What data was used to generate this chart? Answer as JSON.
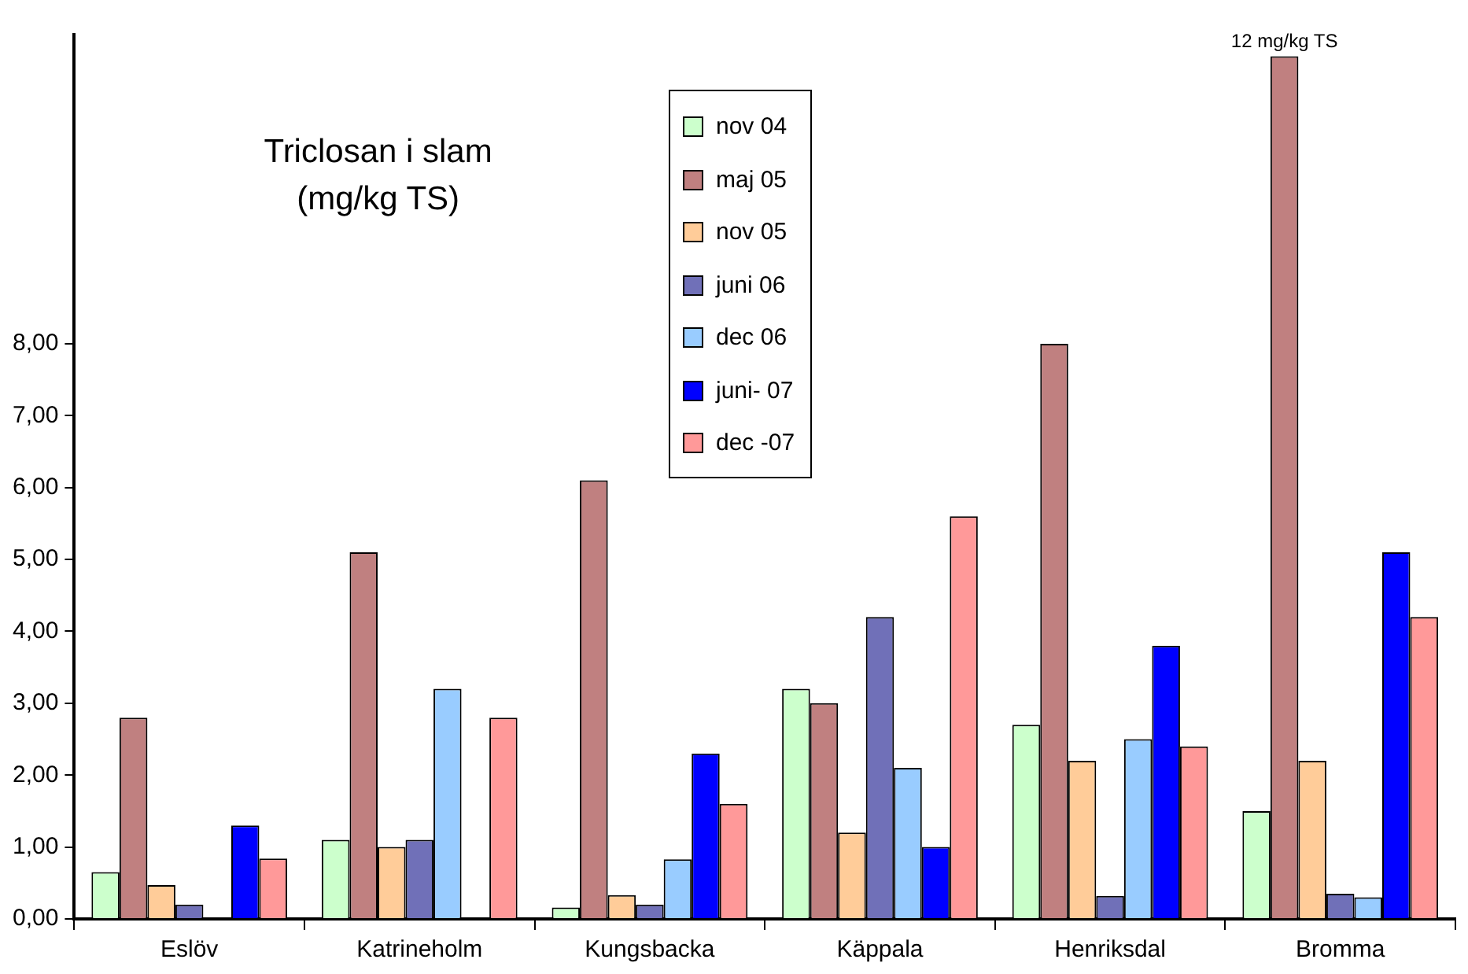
{
  "chart_data": {
    "type": "bar",
    "title": "Triclosan i slam",
    "subtitle": "(mg/kg TS)",
    "categories": [
      "Eslöv",
      "Katrineholm",
      "Kungsbacka",
      "Käppala",
      "Henriksdal",
      "Bromma"
    ],
    "series": [
      {
        "name": "nov 04",
        "color": "#ccffcc",
        "values": [
          0.65,
          1.1,
          0.16,
          3.2,
          2.7,
          1.5
        ]
      },
      {
        "name": "maj 05",
        "color": "#c08080",
        "values": [
          2.8,
          5.1,
          6.1,
          3.0,
          8.0,
          12
        ],
        "value_labels": [
          null,
          null,
          null,
          null,
          null,
          "12 mg/kg TS"
        ]
      },
      {
        "name": "nov 05",
        "color": "#ffcc99",
        "values": [
          0.47,
          1.0,
          0.33,
          1.2,
          2.2,
          2.2
        ]
      },
      {
        "name": "juni 06",
        "color": "#7070b8",
        "values": [
          0.2,
          1.1,
          0.2,
          4.2,
          0.32,
          0.35
        ]
      },
      {
        "name": "dec 06",
        "color": "#99ccff",
        "values": [
          null,
          3.2,
          0.83,
          2.1,
          2.5,
          0.3
        ]
      },
      {
        "name": "juni- 07",
        "color": "#0000ff",
        "values": [
          1.3,
          null,
          2.3,
          1.0,
          3.8,
          5.1
        ]
      },
      {
        "name": "dec -07",
        "color": "#ff9999",
        "values": [
          0.84,
          2.8,
          1.6,
          5.6,
          2.4,
          4.2
        ]
      }
    ],
    "ylim": [
      0,
      12.3
    ],
    "yticks": [
      {
        "value": 0,
        "label": "0,00"
      },
      {
        "value": 1,
        "label": "1,00"
      },
      {
        "value": 2,
        "label": "2,00"
      },
      {
        "value": 3,
        "label": "3,00"
      },
      {
        "value": 4,
        "label": "4,00"
      },
      {
        "value": 5,
        "label": "5,00"
      },
      {
        "value": 6,
        "label": "6,00"
      },
      {
        "value": 7,
        "label": "7,00"
      },
      {
        "value": 8,
        "label": "8,00"
      }
    ],
    "grid": false,
    "legend": "top"
  }
}
